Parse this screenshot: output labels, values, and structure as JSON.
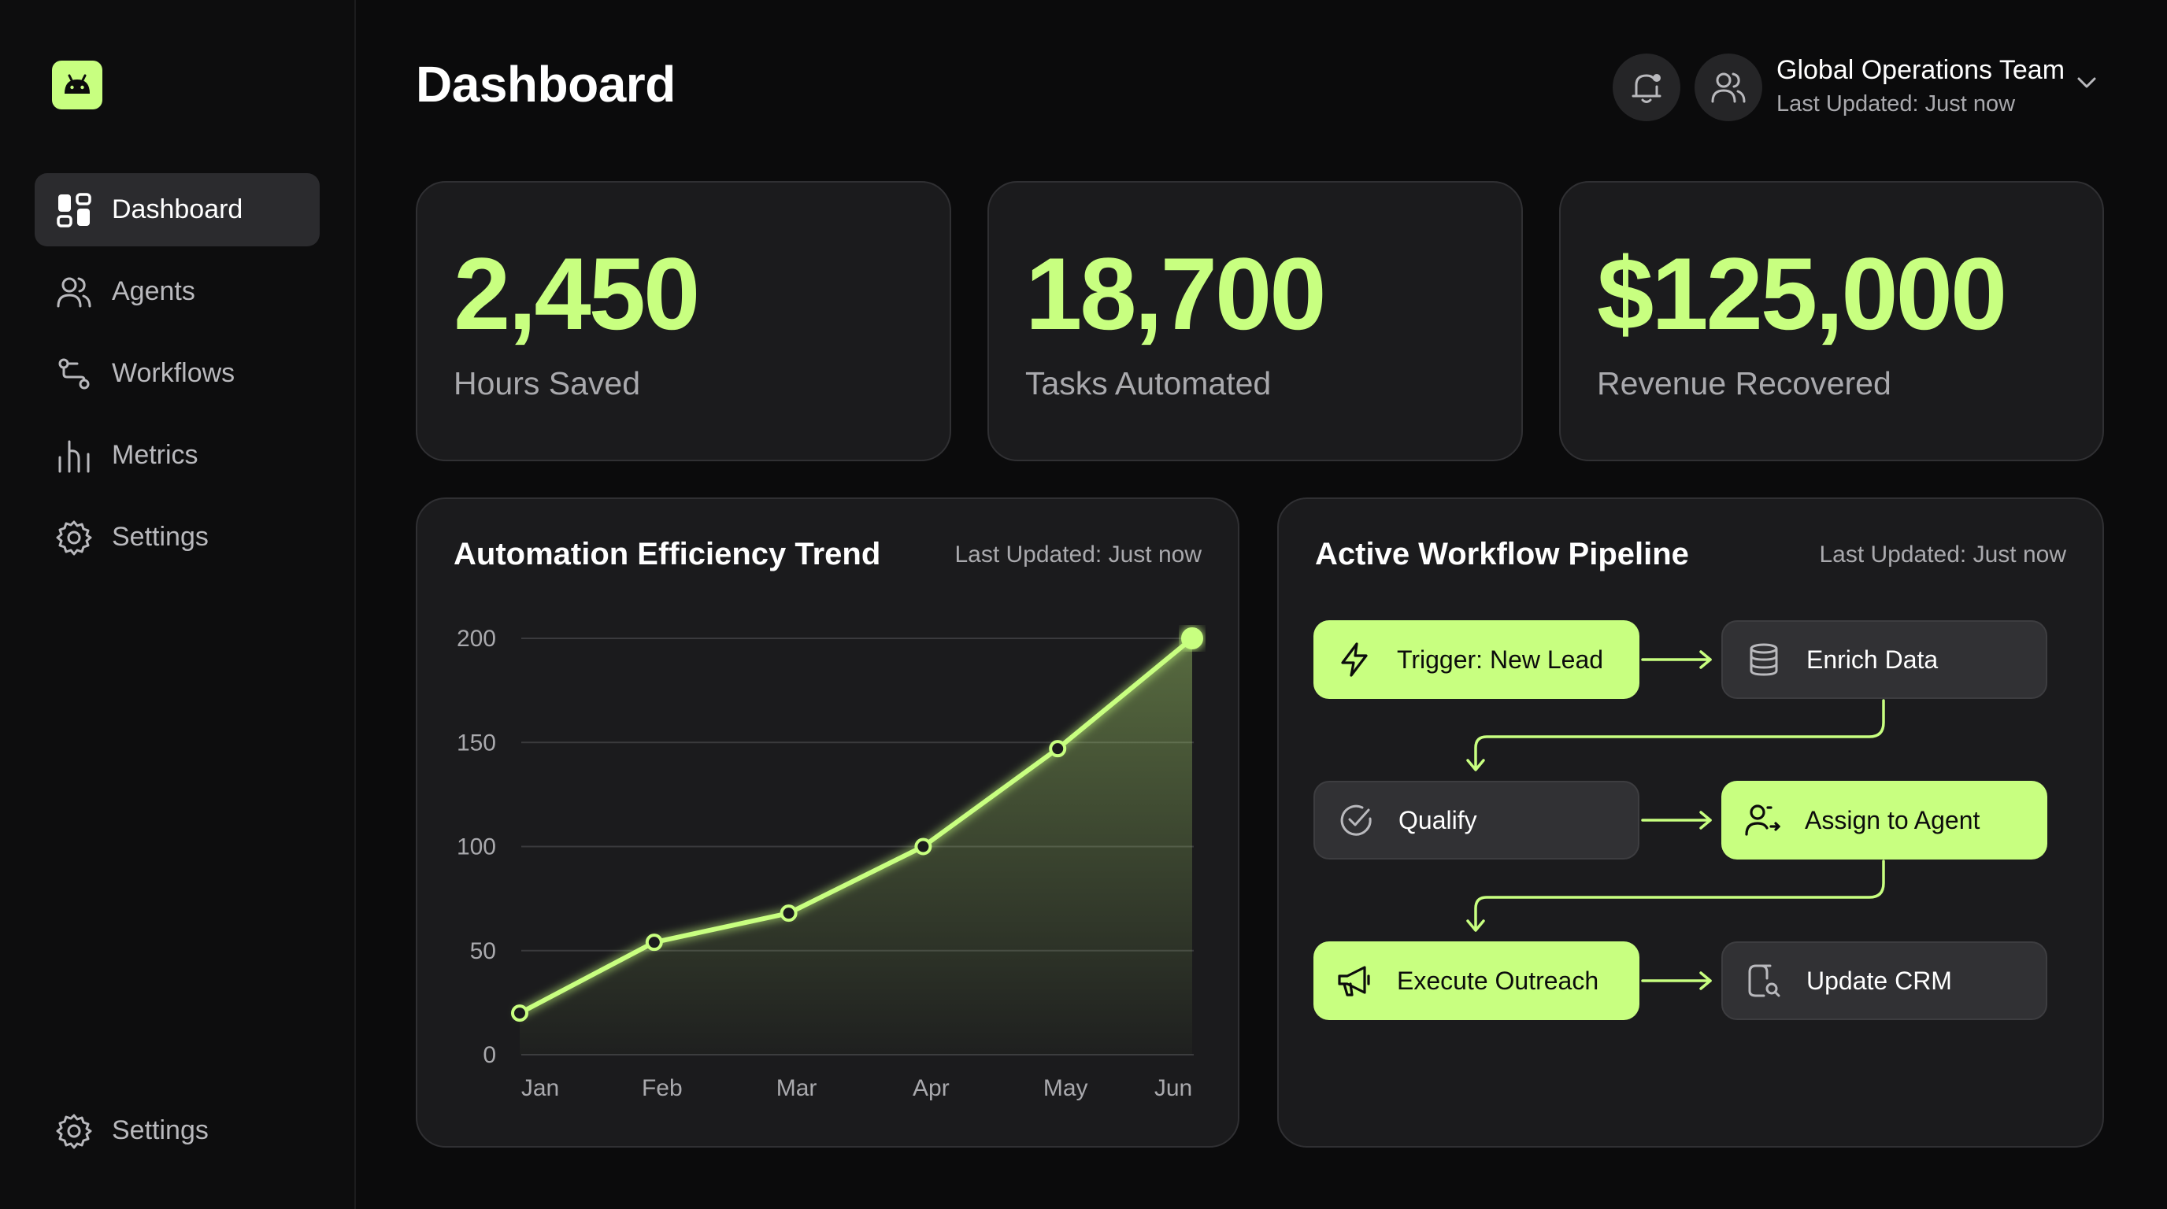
{
  "sidebar": {
    "logo_icon": "android-icon",
    "items": [
      {
        "label": "Dashboard",
        "icon": "dashboard-icon",
        "active": true
      },
      {
        "label": "Agents",
        "icon": "users-icon",
        "active": false
      },
      {
        "label": "Workflows",
        "icon": "workflow-icon",
        "active": false
      },
      {
        "label": "Metrics",
        "icon": "bar-chart-icon",
        "active": false
      },
      {
        "label": "Settings",
        "icon": "gear-icon",
        "active": false
      }
    ],
    "footer_item": {
      "label": "Settings",
      "icon": "gear-icon"
    }
  },
  "header": {
    "title": "Dashboard",
    "team_name": "Global Operations Team",
    "team_updated": "Last Updated: Just now"
  },
  "stats": [
    {
      "value": "2,450",
      "label": "Hours Saved"
    },
    {
      "value": "18,700",
      "label": "Tasks Automated"
    },
    {
      "value": "$125,000",
      "label": "Revenue Recovered"
    }
  ],
  "trend": {
    "title": "Automation Efficiency Trend",
    "updated": "Last Updated: Just now"
  },
  "chart_data": {
    "type": "line",
    "title": "Automation Efficiency Trend",
    "categories": [
      "Jan",
      "Feb",
      "Mar",
      "Apr",
      "May",
      "Jun"
    ],
    "series": [
      {
        "values": [
          20,
          54,
          68,
          100,
          147,
          200
        ]
      }
    ],
    "yticks": [
      0,
      50,
      100,
      150,
      200
    ],
    "ylim": [
      0,
      200
    ],
    "grid": true,
    "area_fill": true,
    "color": "#c8ff80"
  },
  "pipeline": {
    "title": "Active Workflow Pipeline",
    "updated": "Last Updated: Just now",
    "nodes": [
      {
        "label": "Trigger: New Lead",
        "icon": "lightning-icon",
        "style": "green"
      },
      {
        "label": "Enrich Data",
        "icon": "database-icon",
        "style": "gray"
      },
      {
        "label": "Qualify",
        "icon": "check-circle-icon",
        "style": "gray"
      },
      {
        "label": "Assign to Agent",
        "icon": "user-plus-icon",
        "style": "green"
      },
      {
        "label": "Execute Outreach",
        "icon": "megaphone-icon",
        "style": "green"
      },
      {
        "label": "Update CRM",
        "icon": "crm-search-icon",
        "style": "gray"
      }
    ]
  },
  "colors": {
    "accent": "#c8ff80",
    "background": "#0b0b0c",
    "card": "#1b1b1d"
  }
}
